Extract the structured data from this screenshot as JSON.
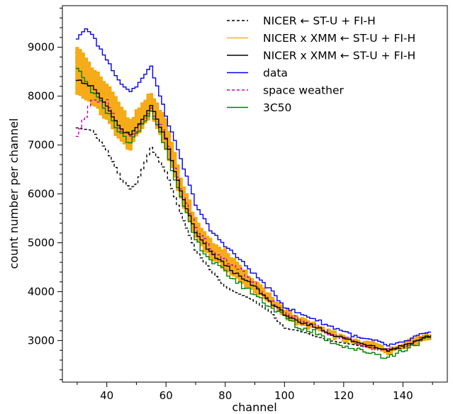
{
  "chart_data": {
    "type": "line",
    "title": "",
    "xlabel": "channel",
    "ylabel": "count number per channel",
    "xlim": [
      25,
      155
    ],
    "ylim": [
      2150,
      9850
    ],
    "xticks": [
      40,
      60,
      80,
      100,
      120,
      140
    ],
    "yticks": [
      3000,
      4000,
      5000,
      6000,
      7000,
      8000,
      9000
    ],
    "grid": false,
    "legend_position": "top-right",
    "series": [
      {
        "name": "NICER ← ST-U + FI-H",
        "color": "#000000",
        "style": "dashed",
        "x": [
          30,
          35,
          40,
          45,
          48,
          50,
          55,
          60,
          65,
          70,
          75,
          80,
          85,
          90,
          95,
          100,
          105,
          110,
          115,
          120,
          125,
          130,
          135,
          140,
          145,
          149
        ],
        "y": [
          7350,
          7300,
          6900,
          6300,
          6100,
          6200,
          6950,
          6450,
          5600,
          4850,
          4450,
          4100,
          3950,
          3800,
          3600,
          3250,
          3200,
          3100,
          3000,
          2950,
          2900,
          2850,
          2800,
          2850,
          3000,
          3100
        ]
      },
      {
        "name": "NICER x XMM ← ST-U + FI-H",
        "color": "#f5a300",
        "style": "band",
        "x": [
          30,
          35,
          40,
          45,
          48,
          50,
          55,
          60,
          65,
          70,
          75,
          80,
          85,
          90,
          95,
          100,
          105,
          110,
          115,
          120,
          125,
          130,
          135,
          140,
          145,
          149
        ],
        "y_low": [
          8050,
          7850,
          7500,
          7050,
          6900,
          7150,
          7650,
          6900,
          5900,
          5100,
          4700,
          4450,
          4200,
          4000,
          3750,
          3500,
          3300,
          3250,
          3100,
          3000,
          2900,
          2850,
          2750,
          2850,
          2950,
          3050
        ],
        "y_high": [
          9000,
          8600,
          8250,
          7750,
          7500,
          7700,
          8100,
          7500,
          6350,
          5500,
          5050,
          4850,
          4500,
          4250,
          3950,
          3650,
          3450,
          3350,
          3200,
          3100,
          3000,
          2950,
          2850,
          2950,
          3050,
          3150
        ]
      },
      {
        "name": "NICER x XMM ← ST-U + FI-H",
        "color": "#000000",
        "style": "solid",
        "x": [
          30,
          35,
          40,
          45,
          48,
          50,
          55,
          60,
          65,
          70,
          75,
          80,
          85,
          90,
          95,
          100,
          105,
          110,
          115,
          120,
          125,
          130,
          135,
          140,
          145,
          149
        ],
        "y": [
          8350,
          8200,
          7800,
          7300,
          7200,
          7350,
          7800,
          7100,
          6050,
          5200,
          4800,
          4550,
          4300,
          4100,
          3800,
          3550,
          3350,
          3300,
          3150,
          3050,
          2950,
          2900,
          2800,
          2900,
          3000,
          3100
        ]
      },
      {
        "name": "data",
        "color": "#0000ee",
        "style": "solid",
        "x": [
          30,
          33,
          35,
          40,
          45,
          48,
          50,
          55,
          60,
          65,
          70,
          75,
          80,
          85,
          90,
          95,
          100,
          105,
          110,
          115,
          120,
          125,
          130,
          135,
          140,
          145,
          149
        ],
        "y": [
          9150,
          9400,
          9250,
          8750,
          8250,
          8100,
          8200,
          8600,
          7600,
          6700,
          5800,
          5250,
          4950,
          4650,
          4350,
          4050,
          3700,
          3550,
          3450,
          3300,
          3200,
          3050,
          3000,
          2900,
          2950,
          3100,
          3150
        ]
      },
      {
        "name": "space weather",
        "color": "#c000c0",
        "style": "dashed",
        "x": [
          30,
          35,
          40,
          45,
          48,
          50,
          55,
          60,
          65,
          70,
          75,
          80,
          85,
          90,
          95,
          100,
          105,
          110,
          115,
          120,
          125,
          130,
          135,
          140,
          145,
          149
        ],
        "y": [
          7200,
          7900,
          7900,
          7250,
          7200,
          7300,
          7750,
          7150,
          6100,
          5300,
          4900,
          4650,
          4450,
          4150,
          3850,
          3550,
          3450,
          3300,
          3150,
          3050,
          2950,
          2850,
          2800,
          2900,
          3000,
          3100
        ]
      },
      {
        "name": "3C50",
        "color": "#008000",
        "style": "solid",
        "x": [
          30,
          35,
          40,
          45,
          48,
          50,
          55,
          60,
          65,
          70,
          75,
          80,
          85,
          90,
          95,
          100,
          105,
          110,
          115,
          120,
          125,
          130,
          135,
          140,
          145,
          149
        ],
        "y": [
          8550,
          8100,
          7700,
          7200,
          7050,
          7200,
          7700,
          6950,
          5900,
          5050,
          4650,
          4400,
          4150,
          3950,
          3700,
          3500,
          3250,
          3200,
          3000,
          2900,
          2800,
          2750,
          2650,
          2800,
          2950,
          3050
        ]
      }
    ]
  }
}
